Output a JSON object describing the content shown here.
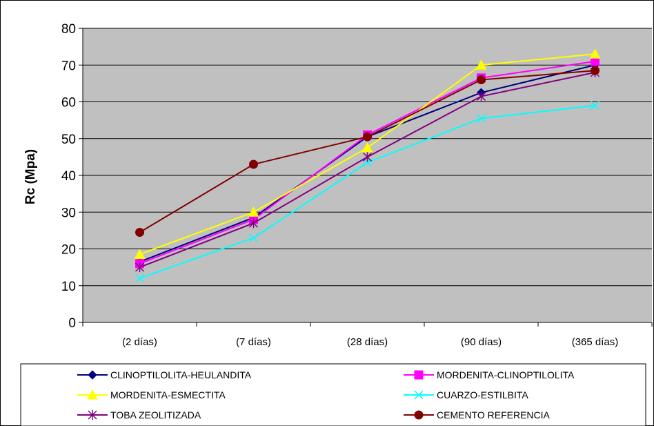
{
  "chart_data": {
    "type": "line",
    "title": "",
    "xlabel": "",
    "ylabel": "Rc (Mpa)",
    "ylim": [
      0,
      80
    ],
    "yticks": [
      0,
      10,
      20,
      30,
      40,
      50,
      60,
      70,
      80
    ],
    "grid": true,
    "legend_position": "bottom",
    "plot_background": "#c0c0c0",
    "categories": [
      "(2 días)",
      "(7 días)",
      "(28 días)",
      "(90 días)",
      "(365 días)"
    ],
    "series": [
      {
        "name": "CLINOPTILOLITA-HEULANDITA",
        "color": "#000080",
        "marker": "diamond",
        "values": [
          16.5,
          28.5,
          50.5,
          62.5,
          70
        ]
      },
      {
        "name": "MORDENITA-CLINOPTILOLITA",
        "color": "#ff00ff",
        "marker": "square",
        "values": [
          16,
          28,
          51,
          66.5,
          71
        ]
      },
      {
        "name": "MORDENITA-ESMECTITA",
        "color": "#ffff00",
        "marker": "triangle",
        "values": [
          18.5,
          30,
          47.5,
          70,
          73
        ]
      },
      {
        "name": "CUARZO-ESTILBITA",
        "color": "#00ffff",
        "marker": "x",
        "values": [
          12,
          23,
          43.5,
          55.5,
          59
        ]
      },
      {
        "name": "TOBA ZEOLITIZADA",
        "color": "#800080",
        "marker": "star",
        "values": [
          15,
          27,
          45,
          61.5,
          68
        ]
      },
      {
        "name": "CEMENTO REFERENCIA",
        "color": "#800000",
        "marker": "circle",
        "values": [
          24.5,
          43,
          50.5,
          66,
          68.5
        ]
      }
    ]
  }
}
